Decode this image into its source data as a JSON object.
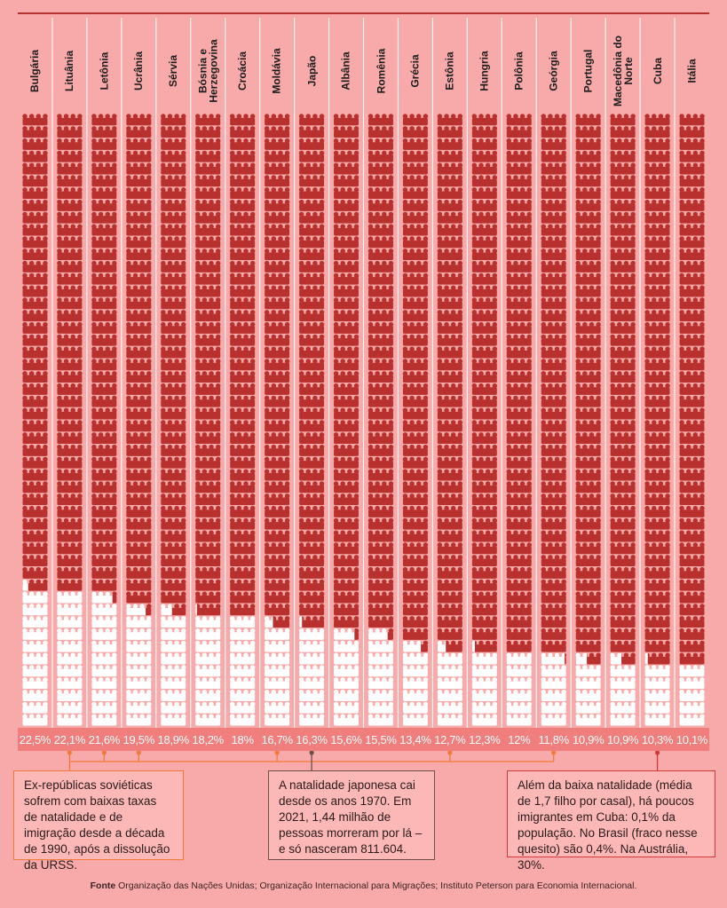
{
  "chart_data": {
    "type": "bar",
    "categories": [
      "Bulgária",
      "Lituânia",
      "Letônia",
      "Ucrânia",
      "Sérvia",
      "Bósnia e Herzegovina",
      "Croácia",
      "Moldávia",
      "Japão",
      "Albânia",
      "Romênia",
      "Grécia",
      "Estônia",
      "Hungria",
      "Polônia",
      "Geórgia",
      "Portugal",
      "Macedônia do Norte",
      "Cuba",
      "Itália"
    ],
    "values": [
      22.5,
      22.1,
      21.6,
      19.5,
      18.9,
      18.2,
      18,
      16.7,
      16.3,
      15.6,
      15.5,
      13.4,
      12.7,
      12.3,
      12,
      11.8,
      10.9,
      10.9,
      10.3,
      10.1
    ],
    "value_labels": [
      "22,5%",
      "22,1%",
      "21,6%",
      "19,5%",
      "18,9%",
      "18,2%",
      "18%",
      "16,7%",
      "16,3%",
      "15,6%",
      "15,5%",
      "13,4%",
      "12,7%",
      "12,3%",
      "12%",
      "11,8%",
      "10,9%",
      "10,9%",
      "10,3%",
      "10,1%"
    ],
    "ylim": [
      0,
      100
    ],
    "grid": false,
    "colors": {
      "background": "#f7aaa9",
      "filled": "#b8312f",
      "empty": "#ffffff",
      "band": "#ef7e7c",
      "rule": "#b8312f"
    }
  },
  "annotations": {
    "soviet": "Ex-repúblicas soviéticas sofrem com baixas taxas de natalidade e de imigração desde a década de 1990, após a dissolução da URSS.",
    "japan": "A natalidade japonesa cai desde os anos 1970. Em 2021, 1,44 milhão de pessoas morreram por lá – e só nasceram 811.604.",
    "cuba": "Além da baixa natalidade (média de 1,7 filho por casal), há poucos imigrantes em Cuba: 0,1% da população. No Brasil (fraco nesse quesito) são 0,4%. Na Austrália, 30%."
  },
  "source": {
    "label": "Fonte",
    "text": "Organização das Nações Unidas; Organização Internacional para Migrações; Instituto Peterson para Economia Internacional."
  }
}
